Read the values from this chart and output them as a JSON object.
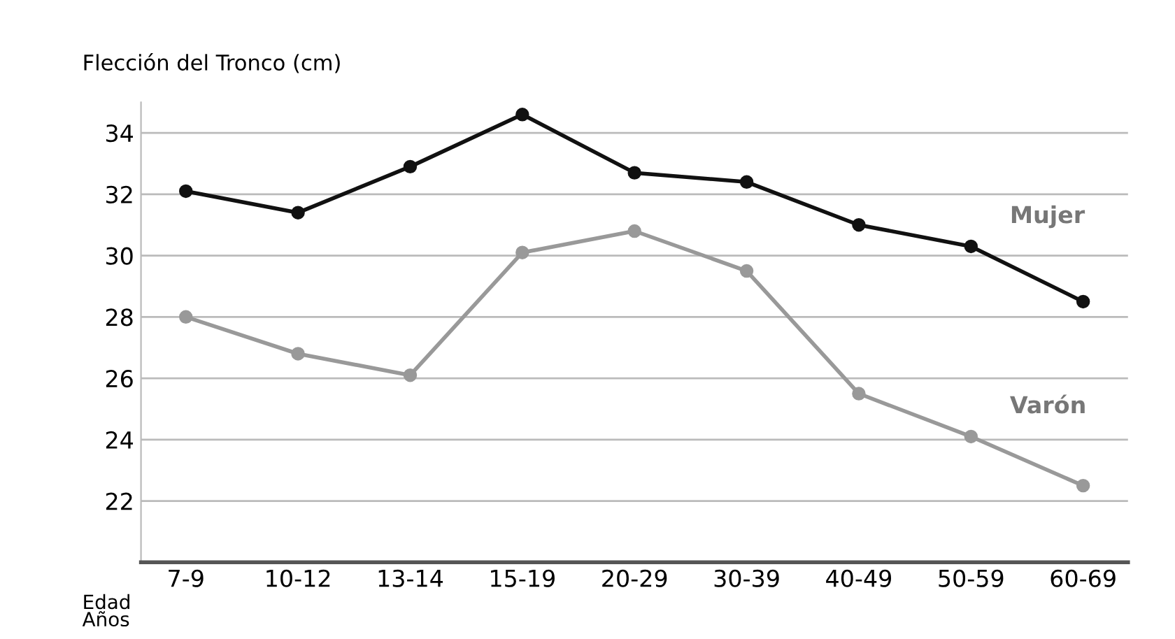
{
  "chart_data": {
    "type": "line",
    "ylabel": "Flección del Tronco (cm)",
    "xlabel": "Edad\nAños",
    "categories": [
      "7-9",
      "10-12",
      "13-14",
      "15-19",
      "20-29",
      "30-39",
      "40-49",
      "50-59",
      "60-69"
    ],
    "series": [
      {
        "name": "Mujer",
        "color": "#111111",
        "values": [
          32.1,
          31.4,
          32.9,
          34.6,
          32.7,
          32.4,
          31.0,
          30.3,
          28.5
        ]
      },
      {
        "name": "Varón",
        "color": "#999999",
        "values": [
          28.0,
          26.8,
          26.1,
          30.1,
          30.8,
          29.5,
          25.5,
          24.1,
          22.5
        ]
      }
    ],
    "ylim": [
      20,
      35
    ],
    "yticks": [
      22,
      24,
      26,
      28,
      30,
      32,
      34
    ],
    "grid": "y",
    "marker": "circle",
    "line_style": "solid",
    "legend": false
  }
}
